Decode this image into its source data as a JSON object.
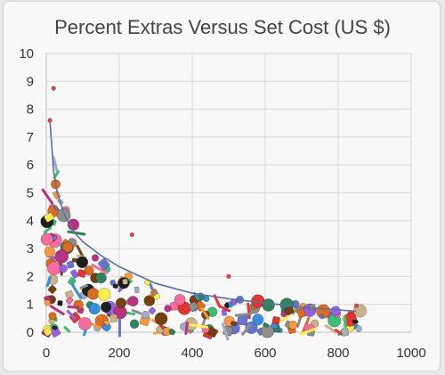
{
  "chart_data": {
    "type": "scatter",
    "title": "Percent Extras Versus Set Cost (US $)",
    "xlabel": "",
    "ylabel": "",
    "xlim": [
      0,
      1000
    ],
    "ylim": [
      0,
      10
    ],
    "x_ticks": [
      "0",
      "200",
      "400",
      "600",
      "800",
      "1000"
    ],
    "y_ticks": [
      "0",
      "1",
      "2",
      "3",
      "4",
      "5",
      "6",
      "7",
      "8",
      "9",
      "10"
    ],
    "grid": true,
    "points": [
      {
        "x": 20,
        "y": 8.75
      },
      {
        "x": 10,
        "y": 7.6
      },
      {
        "x": 235,
        "y": 3.5
      },
      {
        "x": 500,
        "y": 2.0
      },
      {
        "x": 850,
        "y": 0.95
      }
    ],
    "trendline": {
      "x": [
        10,
        20,
        30,
        50,
        75,
        100,
        150,
        200,
        300,
        400,
        500,
        600,
        700,
        800,
        850
      ],
      "y": [
        7.6,
        5.8,
        5.0,
        4.2,
        3.6,
        3.25,
        2.75,
        2.35,
        1.75,
        1.4,
        1.2,
        1.05,
        0.9,
        0.8,
        0.75
      ]
    },
    "colors": {
      "point": "#c0504d",
      "trendline": "#5b6fa8",
      "grid": "#d9d9d9",
      "axis": "#bfbfbf"
    },
    "background_note": "pile of toy parts"
  }
}
